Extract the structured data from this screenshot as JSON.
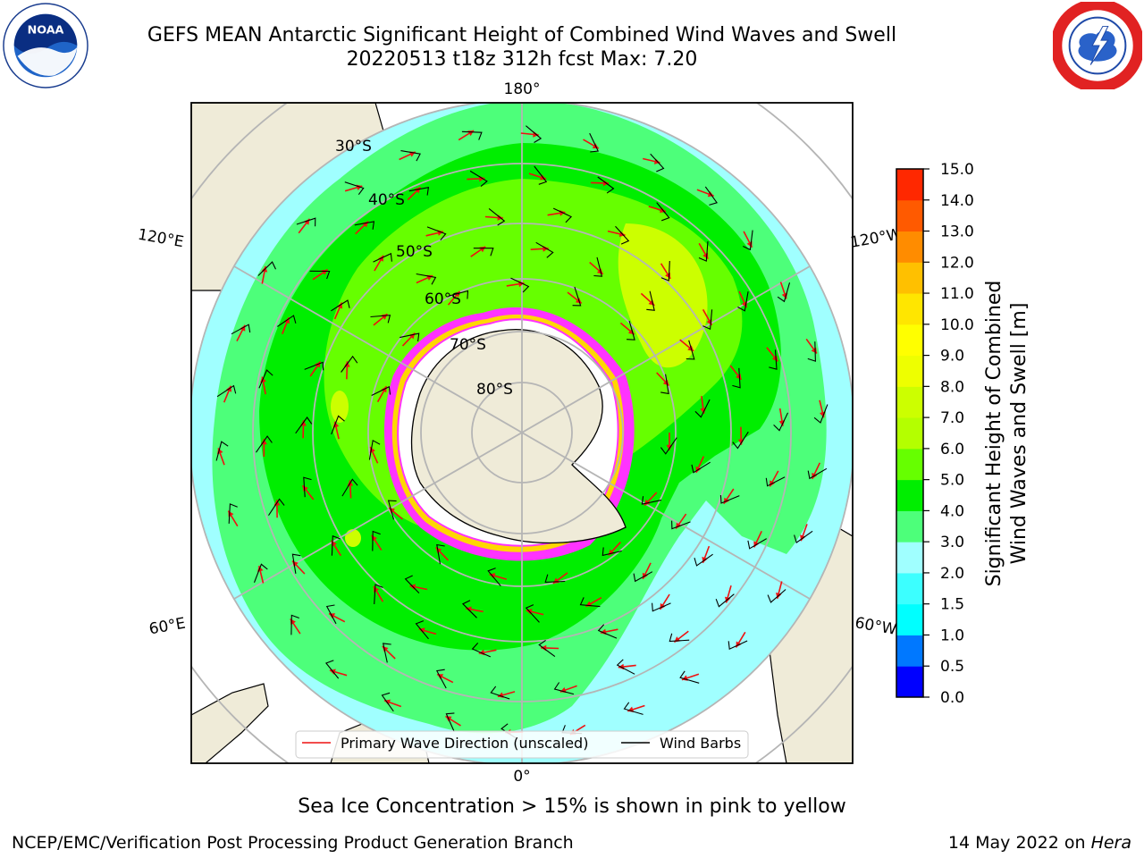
{
  "header": {
    "title_line1": "GEFS MEAN Antarctic Significant Height of Combined Wind Waves and Swell",
    "title_line2": "20220513 t18z 312h fcst   Max: 7.20"
  },
  "logos": {
    "left": "noaa-logo",
    "right": "national-weather-service-logo"
  },
  "map": {
    "projection": "south-polar-stereographic",
    "longitude_labels": [
      "180°",
      "120°E",
      "120°W",
      "60°E",
      "60°W",
      "0°"
    ],
    "latitude_labels": [
      "30°S",
      "40°S",
      "50°S",
      "60°S",
      "70°S",
      "80°S"
    ],
    "legend": {
      "primary_wave": "Primary Wave Direction (unscaled)",
      "wind_barbs": "Wind Barbs"
    },
    "colors": {
      "land": "#efebd8",
      "arrow": "#ee1111",
      "barb": "#000000",
      "ice": "#ff33ff"
    }
  },
  "colorbar": {
    "label_line1": "Significant Height of Combined",
    "label_line2": "Wind Waves and Swell [m]",
    "ticks": [
      "0.0",
      "0.5",
      "1.0",
      "1.5",
      "2.0",
      "3.0",
      "4.0",
      "5.0",
      "6.0",
      "7.0",
      "8.0",
      "9.0",
      "10.0",
      "11.0",
      "12.0",
      "13.0",
      "14.0",
      "15.0"
    ],
    "colors": [
      "#0000ff",
      "#0078ff",
      "#00ffff",
      "#3cffff",
      "#a0ffff",
      "#4dff7a",
      "#00ee00",
      "#66ff00",
      "#b4ff00",
      "#ccff00",
      "#eeff00",
      "#ffff00",
      "#ffe600",
      "#ffc000",
      "#ff8c00",
      "#ff5a00",
      "#ff2800"
    ]
  },
  "caption": "Sea Ice Concentration > 15% is shown in pink to yellow",
  "footer": {
    "left": "NCEP/EMC/Verification Post Processing Product Generation Branch",
    "right_prefix": "14 May 2022 on ",
    "right_host": "Hera"
  }
}
